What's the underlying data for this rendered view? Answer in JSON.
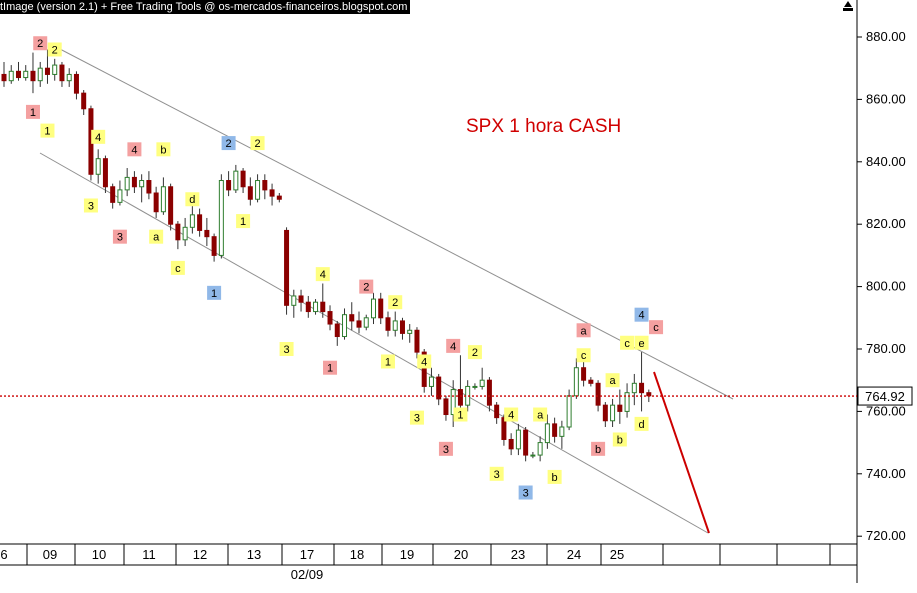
{
  "header": {
    "banner": "tImage (version 2.1) + Free Trading Tools @ os-mercados-financeiros.blogspot.com"
  },
  "chart_data": {
    "type": "candlestick",
    "title": "SPX 1 hora CASH",
    "ylim": [
      710,
      892
    ],
    "y_ticks": [
      "880.00",
      "860.00",
      "840.00",
      "820.00",
      "800.00",
      "780.00",
      "760.00",
      "740.00",
      "720.00"
    ],
    "current_price": "764.92",
    "x_tick_labels": [
      "6",
      "09",
      "10",
      "11",
      "12",
      "13",
      "17",
      "18",
      "19",
      "20",
      "23",
      "24",
      "25"
    ],
    "x_secondary_label": "02/09",
    "colors": {
      "up": "#2e7d2e",
      "down": "#8b0000",
      "channel": "#909090",
      "price_line": "#cc0000",
      "projection": "#cc0000"
    },
    "candles": [
      {
        "o": 868,
        "h": 872,
        "l": 864,
        "c": 866
      },
      {
        "o": 866,
        "h": 871,
        "l": 865,
        "c": 869
      },
      {
        "o": 869,
        "h": 872,
        "l": 866,
        "c": 867
      },
      {
        "o": 867,
        "h": 871,
        "l": 866,
        "c": 869
      },
      {
        "o": 869,
        "h": 875,
        "l": 862,
        "c": 866
      },
      {
        "o": 866,
        "h": 872,
        "l": 864,
        "c": 870
      },
      {
        "o": 870,
        "h": 876,
        "l": 865,
        "c": 868
      },
      {
        "o": 868,
        "h": 873,
        "l": 866,
        "c": 871
      },
      {
        "o": 871,
        "h": 872,
        "l": 864,
        "c": 866
      },
      {
        "o": 866,
        "h": 870,
        "l": 864,
        "c": 868
      },
      {
        "o": 868,
        "h": 869,
        "l": 860,
        "c": 862
      },
      {
        "o": 862,
        "h": 863,
        "l": 855,
        "c": 857
      },
      {
        "o": 857,
        "h": 858,
        "l": 834,
        "c": 836
      },
      {
        "o": 836,
        "h": 844,
        "l": 833,
        "c": 841
      },
      {
        "o": 841,
        "h": 842,
        "l": 830,
        "c": 832
      },
      {
        "o": 832,
        "h": 833,
        "l": 825,
        "c": 827
      },
      {
        "o": 827,
        "h": 834,
        "l": 826,
        "c": 831
      },
      {
        "o": 831,
        "h": 838,
        "l": 829,
        "c": 835
      },
      {
        "o": 835,
        "h": 837,
        "l": 830,
        "c": 832
      },
      {
        "o": 832,
        "h": 836,
        "l": 827,
        "c": 834
      },
      {
        "o": 834,
        "h": 837,
        "l": 828,
        "c": 830
      },
      {
        "o": 830,
        "h": 832,
        "l": 822,
        "c": 824
      },
      {
        "o": 824,
        "h": 835,
        "l": 823,
        "c": 832
      },
      {
        "o": 832,
        "h": 833,
        "l": 818,
        "c": 820
      },
      {
        "o": 820,
        "h": 821,
        "l": 812,
        "c": 815
      },
      {
        "o": 815,
        "h": 822,
        "l": 813,
        "c": 819
      },
      {
        "o": 819,
        "h": 826,
        "l": 817,
        "c": 823
      },
      {
        "o": 823,
        "h": 825,
        "l": 816,
        "c": 818
      },
      {
        "o": 818,
        "h": 822,
        "l": 813,
        "c": 816
      },
      {
        "o": 816,
        "h": 817,
        "l": 808,
        "c": 810
      },
      {
        "o": 810,
        "h": 836,
        "l": 809,
        "c": 834
      },
      {
        "o": 834,
        "h": 837,
        "l": 829,
        "c": 831
      },
      {
        "o": 831,
        "h": 839,
        "l": 830,
        "c": 837
      },
      {
        "o": 837,
        "h": 838,
        "l": 830,
        "c": 832
      },
      {
        "o": 832,
        "h": 835,
        "l": 826,
        "c": 828
      },
      {
        "o": 828,
        "h": 836,
        "l": 827,
        "c": 834
      },
      {
        "o": 834,
        "h": 836,
        "l": 828,
        "c": 831
      },
      {
        "o": 831,
        "h": 833,
        "l": 826,
        "c": 829
      },
      {
        "o": 829,
        "h": 830,
        "l": 827,
        "c": 828
      },
      {
        "o": 818,
        "h": 819,
        "l": 791,
        "c": 794
      },
      {
        "o": 794,
        "h": 799,
        "l": 790,
        "c": 797
      },
      {
        "o": 797,
        "h": 799,
        "l": 792,
        "c": 795
      },
      {
        "o": 795,
        "h": 797,
        "l": 790,
        "c": 792
      },
      {
        "o": 792,
        "h": 796,
        "l": 791,
        "c": 795
      },
      {
        "o": 795,
        "h": 801,
        "l": 790,
        "c": 792
      },
      {
        "o": 792,
        "h": 794,
        "l": 786,
        "c": 788
      },
      {
        "o": 788,
        "h": 789,
        "l": 781,
        "c": 784
      },
      {
        "o": 784,
        "h": 793,
        "l": 783,
        "c": 791
      },
      {
        "o": 791,
        "h": 795,
        "l": 786,
        "c": 789
      },
      {
        "o": 789,
        "h": 792,
        "l": 785,
        "c": 787
      },
      {
        "o": 787,
        "h": 791,
        "l": 786,
        "c": 790
      },
      {
        "o": 790,
        "h": 798,
        "l": 788,
        "c": 796
      },
      {
        "o": 796,
        "h": 798,
        "l": 788,
        "c": 790
      },
      {
        "o": 790,
        "h": 792,
        "l": 784,
        "c": 786
      },
      {
        "o": 786,
        "h": 792,
        "l": 784,
        "c": 789
      },
      {
        "o": 789,
        "h": 790,
        "l": 783,
        "c": 785
      },
      {
        "o": 785,
        "h": 788,
        "l": 782,
        "c": 786
      },
      {
        "o": 786,
        "h": 787,
        "l": 777,
        "c": 779
      },
      {
        "o": 779,
        "h": 780,
        "l": 766,
        "c": 768
      },
      {
        "o": 768,
        "h": 774,
        "l": 765,
        "c": 771
      },
      {
        "o": 771,
        "h": 772,
        "l": 762,
        "c": 764
      },
      {
        "o": 764,
        "h": 765,
        "l": 757,
        "c": 759
      },
      {
        "o": 759,
        "h": 770,
        "l": 755,
        "c": 767
      },
      {
        "o": 767,
        "h": 778,
        "l": 760,
        "c": 762
      },
      {
        "o": 762,
        "h": 770,
        "l": 760,
        "c": 768
      },
      {
        "o": 768,
        "h": 769,
        "l": 767,
        "c": 768
      },
      {
        "o": 768,
        "h": 774,
        "l": 767,
        "c": 770
      },
      {
        "o": 770,
        "h": 771,
        "l": 760,
        "c": 762
      },
      {
        "o": 762,
        "h": 763,
        "l": 756,
        "c": 758
      },
      {
        "o": 758,
        "h": 759,
        "l": 749,
        "c": 751
      },
      {
        "o": 751,
        "h": 753,
        "l": 746,
        "c": 748
      },
      {
        "o": 748,
        "h": 756,
        "l": 746,
        "c": 754
      },
      {
        "o": 754,
        "h": 755,
        "l": 744,
        "c": 746
      },
      {
        "o": 746,
        "h": 747,
        "l": 745,
        "c": 746
      },
      {
        "o": 746,
        "h": 752,
        "l": 744,
        "c": 750
      },
      {
        "o": 750,
        "h": 759,
        "l": 748,
        "c": 756
      },
      {
        "o": 756,
        "h": 758,
        "l": 750,
        "c": 752
      },
      {
        "o": 752,
        "h": 757,
        "l": 748,
        "c": 755
      },
      {
        "o": 755,
        "h": 767,
        "l": 754,
        "c": 765
      },
      {
        "o": 765,
        "h": 777,
        "l": 764,
        "c": 774
      },
      {
        "o": 774,
        "h": 777,
        "l": 768,
        "c": 770
      },
      {
        "o": 770,
        "h": 771,
        "l": 768,
        "c": 769
      },
      {
        "o": 769,
        "h": 770,
        "l": 760,
        "c": 762
      },
      {
        "o": 762,
        "h": 763,
        "l": 755,
        "c": 757
      },
      {
        "o": 757,
        "h": 764,
        "l": 755,
        "c": 762
      },
      {
        "o": 762,
        "h": 767,
        "l": 756,
        "c": 760
      },
      {
        "o": 760,
        "h": 769,
        "l": 758,
        "c": 766
      },
      {
        "o": 766,
        "h": 772,
        "l": 762,
        "c": 769
      },
      {
        "o": 769,
        "h": 779,
        "l": 760,
        "c": 766
      },
      {
        "o": 766,
        "h": 767,
        "l": 763,
        "c": 765
      }
    ],
    "annotations": [
      {
        "label": "2",
        "style": "pink",
        "i": 5,
        "v": 878
      },
      {
        "label": "2",
        "style": "yellow",
        "i": 7,
        "v": 876
      },
      {
        "label": "1",
        "style": "pink",
        "i": 4,
        "v": 856
      },
      {
        "label": "1",
        "style": "yellow",
        "i": 6,
        "v": 850
      },
      {
        "label": "4",
        "style": "yellow",
        "i": 13,
        "v": 848
      },
      {
        "label": "4",
        "style": "pink",
        "i": 18,
        "v": 844
      },
      {
        "label": "b",
        "style": "yellow",
        "i": 22,
        "v": 844
      },
      {
        "label": "3",
        "style": "yellow",
        "i": 12,
        "v": 826
      },
      {
        "label": "3",
        "style": "pink",
        "i": 16,
        "v": 816
      },
      {
        "label": "a",
        "style": "yellow",
        "i": 21,
        "v": 816
      },
      {
        "label": "d",
        "style": "yellow",
        "i": 26,
        "v": 828
      },
      {
        "label": "c",
        "style": "yellow",
        "i": 24,
        "v": 806
      },
      {
        "label": "1",
        "style": "blue",
        "i": 29,
        "v": 798
      },
      {
        "label": "2",
        "style": "blue",
        "i": 31,
        "v": 846
      },
      {
        "label": "2",
        "style": "yellow",
        "i": 35,
        "v": 846
      },
      {
        "label": "1",
        "style": "yellow",
        "i": 33,
        "v": 821
      },
      {
        "label": "4",
        "style": "yellow",
        "i": 44,
        "v": 804
      },
      {
        "label": "3",
        "style": "yellow",
        "i": 39,
        "v": 780
      },
      {
        "label": "2",
        "style": "pink",
        "i": 50,
        "v": 800
      },
      {
        "label": "2",
        "style": "yellow",
        "i": 54,
        "v": 795
      },
      {
        "label": "1",
        "style": "yellow",
        "i": 53,
        "v": 776
      },
      {
        "label": "1",
        "style": "pink",
        "i": 45,
        "v": 774
      },
      {
        "label": "4",
        "style": "yellow",
        "i": 58,
        "v": 776
      },
      {
        "label": "3",
        "style": "yellow",
        "i": 57,
        "v": 758
      },
      {
        "label": "4",
        "style": "pink",
        "i": 62,
        "v": 781
      },
      {
        "label": "2",
        "style": "yellow",
        "i": 65,
        "v": 779
      },
      {
        "label": "1",
        "style": "yellow",
        "i": 63,
        "v": 759
      },
      {
        "label": "3",
        "style": "pink",
        "i": 61,
        "v": 748
      },
      {
        "label": "4",
        "style": "yellow",
        "i": 70,
        "v": 759
      },
      {
        "label": "a",
        "style": "yellow",
        "i": 74,
        "v": 759
      },
      {
        "label": "3",
        "style": "yellow",
        "i": 68,
        "v": 740
      },
      {
        "label": "3",
        "style": "blue",
        "i": 72,
        "v": 734
      },
      {
        "label": "b",
        "style": "yellow",
        "i": 76,
        "v": 739
      },
      {
        "label": "a",
        "style": "pink",
        "i": 80,
        "v": 786
      },
      {
        "label": "c",
        "style": "yellow",
        "i": 80,
        "v": 778
      },
      {
        "label": "a",
        "style": "yellow",
        "i": 84,
        "v": 770
      },
      {
        "label": "c",
        "style": "yellow",
        "i": 86,
        "v": 782
      },
      {
        "label": "e",
        "style": "yellow",
        "i": 88,
        "v": 782
      },
      {
        "label": "4",
        "style": "blue",
        "i": 88,
        "v": 791
      },
      {
        "label": "c",
        "style": "pink",
        "i": 90,
        "v": 787
      },
      {
        "label": "b",
        "style": "pink",
        "i": 82,
        "v": 748
      },
      {
        "label": "b",
        "style": "yellow",
        "i": 85,
        "v": 751
      },
      {
        "label": "d",
        "style": "yellow",
        "i": 88,
        "v": 756
      }
    ]
  }
}
